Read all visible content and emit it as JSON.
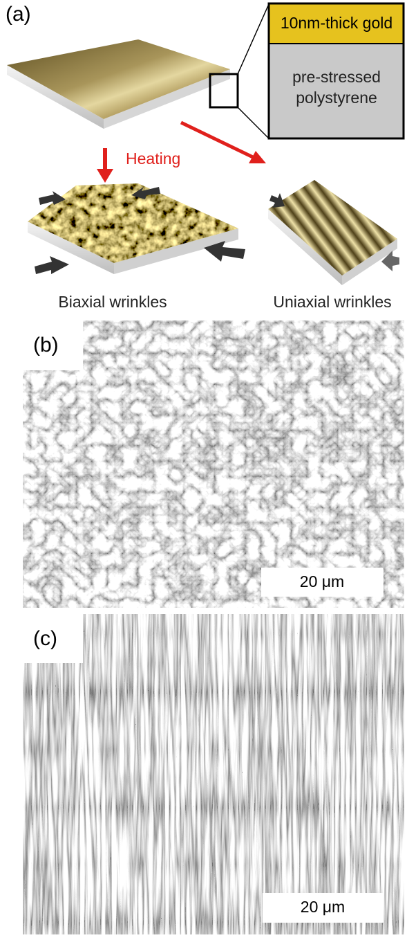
{
  "panel_a": {
    "label": "(a)",
    "layer_labels": {
      "gold": "10nm-thick gold",
      "substrate": [
        "pre-stressed",
        "polystyrene"
      ]
    },
    "process_label": "Heating",
    "results": [
      "Biaxial wrinkles",
      "Uniaxial wrinkles"
    ]
  },
  "panel_b": {
    "label": "(b)",
    "scale_bar": "20 μm"
  },
  "panel_c": {
    "label": "(c)",
    "scale_bar": "20 μm"
  }
}
